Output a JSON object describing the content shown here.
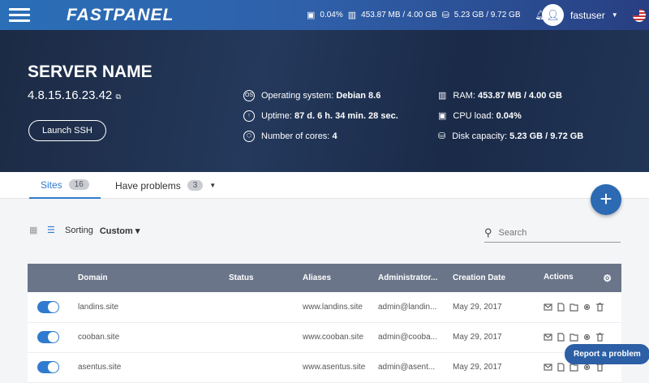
{
  "topbar": {
    "logo": "FASTPANEL",
    "cpu": "0.04%",
    "ram": "453.87 MB / 4.00 GB",
    "disk": "5.23 GB / 9.72 GB",
    "username": "fastuser"
  },
  "server": {
    "name": "SERVER NAME",
    "ip": "4.8.15.16.23.42",
    "ssh_label": "Launch SSH",
    "os_label": "Operating system:",
    "os": "Debian 8.6",
    "uptime_label": "Uptime:",
    "uptime": "87 d. 6 h. 34 min. 28 sec.",
    "cores_label": "Number of cores:",
    "cores": "4",
    "ram_label": "RAM:",
    "ram": "453.87 MB / 4.00 GB",
    "cpu_label": "CPU load:",
    "cpu": "0.04%",
    "disk_label": "Disk capacity:",
    "disk": "5.23 GB / 9.72 GB"
  },
  "tabs": [
    {
      "label": "Sites",
      "count": "16"
    },
    {
      "label": "Have problems",
      "count": "3"
    }
  ],
  "toolbar": {
    "sorting_label": "Sorting",
    "sorting_value": "Custom",
    "search_placeholder": "Search"
  },
  "table": {
    "headers": [
      "Domain",
      "Status",
      "Aliases",
      "Administrator...",
      "Creation Date",
      "Actions"
    ],
    "rows": [
      {
        "domain": "landins.site",
        "status": "",
        "alias": "www.landins.site",
        "admin": "admin@landin...",
        "date": "May 29, 2017"
      },
      {
        "domain": "cooban.site",
        "status": "",
        "alias": "www.cooban.site",
        "admin": "admin@cooba...",
        "date": "May 29, 2017"
      },
      {
        "domain": "asentus.site",
        "status": "",
        "alias": "www.asentus.site",
        "admin": "admin@asent...",
        "date": "May 29, 2017"
      }
    ]
  },
  "report_label": "Report a problem",
  "colors": {
    "accent": "#2f7bd0",
    "table_header": "#6b7589"
  }
}
